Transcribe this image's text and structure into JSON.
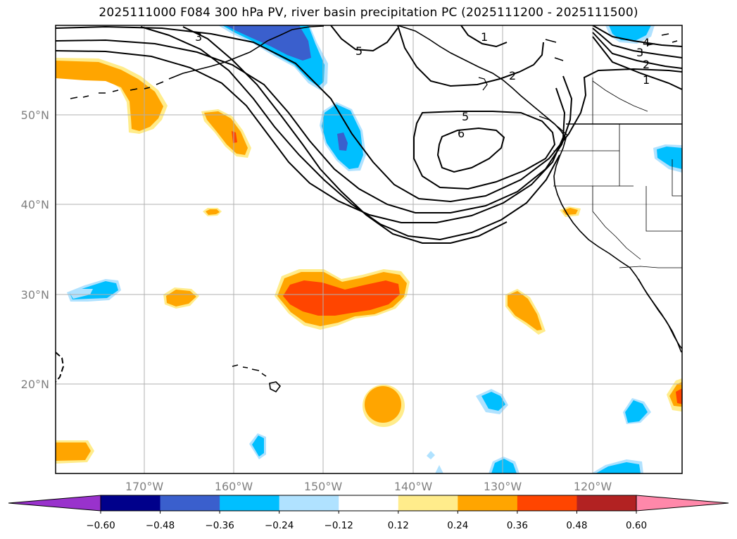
{
  "title": "2025111000 F084 300 hPa PV, river basin precipitation PC (2025111200 - 2025111500)",
  "lat_labels": [
    "50°N",
    "40°N",
    "30°N",
    "20°N"
  ],
  "lon_labels": [
    "170°W",
    "160°W",
    "150°W",
    "140°W",
    "130°W",
    "120°W"
  ],
  "pv_contour_labels": [
    "1",
    "2",
    "3",
    "4",
    "5",
    "6",
    "1",
    "2",
    "3",
    "5",
    "5",
    "6"
  ],
  "colorbar": {
    "tick_labels": [
      "−0.60",
      "−0.48",
      "−0.36",
      "−0.24",
      "−0.12",
      "0.12",
      "0.24",
      "0.36",
      "0.48",
      "0.60"
    ],
    "colors": [
      "#9932cc",
      "#00008b",
      "#3a5fcd",
      "#00bfff",
      "#b0e2ff",
      "#ffffff",
      "#ffec8b",
      "#ffa500",
      "#ff4500",
      "#b22222",
      "#ff88aa"
    ]
  }
}
